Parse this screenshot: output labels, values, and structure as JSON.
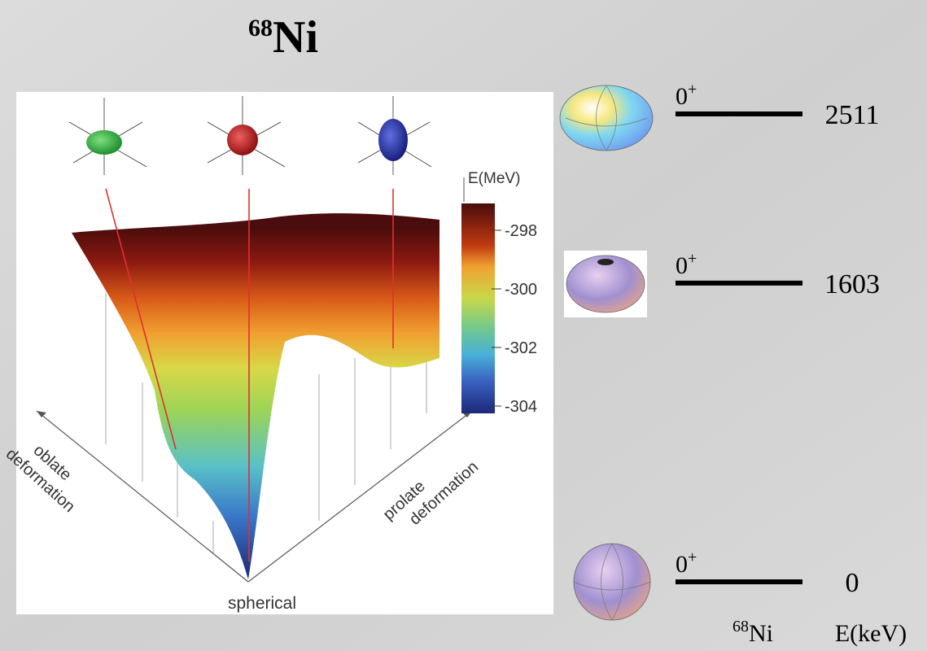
{
  "title": {
    "mass": "68",
    "symbol": "Ni"
  },
  "surface": {
    "colorbar_label": "E(MeV)",
    "colorbar_ticks": [
      -298,
      -300,
      -302,
      -304
    ],
    "oblate_label": [
      "oblate",
      "deformation"
    ],
    "prolate_label": [
      "prolate",
      "deformation"
    ],
    "spherical_label": "spherical"
  },
  "levels": [
    {
      "spin": "0",
      "parity": "+",
      "energy": 2511
    },
    {
      "spin": "0",
      "parity": "+",
      "energy": 1603
    },
    {
      "spin": "0",
      "parity": "+",
      "energy": 0
    }
  ],
  "footer": {
    "mass": "68",
    "symbol": "Ni",
    "energy_unit": "E(keV)"
  }
}
